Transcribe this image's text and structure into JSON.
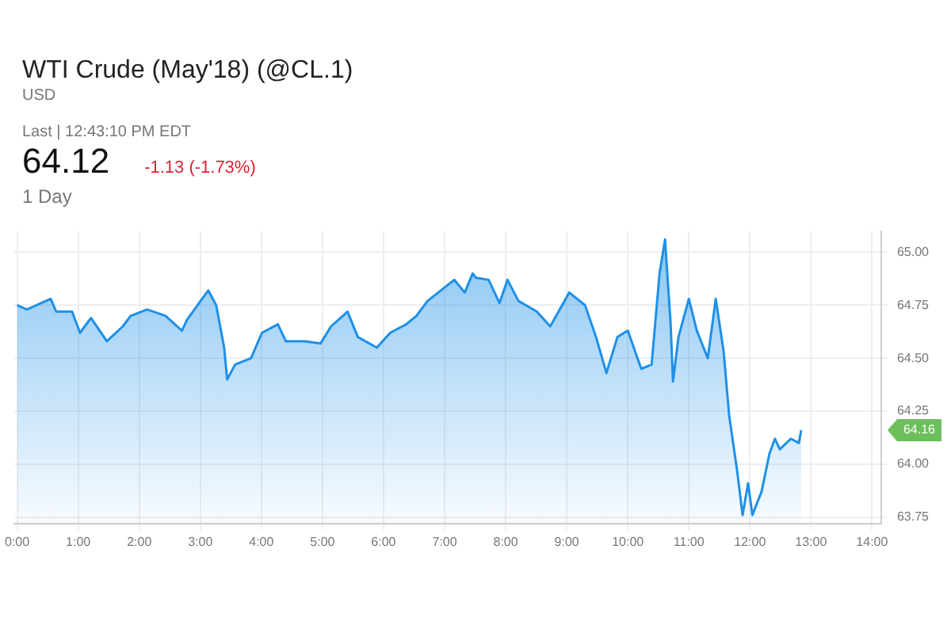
{
  "chart_data": {
    "type": "area",
    "title": "WTI Crude (May'18) (@CL.1)",
    "subtitle": "USD",
    "annotations": [
      "Last | 12:43:10 PM EDT",
      "64.12",
      "-1.13 (-1.73%)",
      "1 Day",
      "64.16"
    ],
    "x": [
      0.0,
      0.16,
      0.55,
      0.64,
      0.9,
      1.03,
      1.21,
      1.47,
      1.73,
      1.86,
      2.13,
      2.43,
      2.7,
      2.78,
      3.13,
      3.26,
      3.39,
      3.44,
      3.57,
      3.83,
      4.01,
      4.27,
      4.4,
      4.71,
      4.97,
      5.14,
      5.41,
      5.58,
      5.89,
      6.11,
      6.37,
      6.54,
      6.72,
      7.16,
      7.33,
      7.46,
      7.51,
      7.72,
      7.9,
      8.03,
      8.21,
      8.51,
      8.73,
      9.04,
      9.3,
      9.48,
      9.65,
      9.83,
      10.0,
      10.22,
      10.39,
      10.52,
      10.61,
      10.7,
      10.74,
      10.83,
      11.0,
      11.13,
      11.31,
      11.44,
      11.57,
      11.66,
      11.79,
      11.88,
      11.97,
      12.04,
      12.19,
      12.32,
      12.41,
      12.49,
      12.67,
      12.8,
      12.84
    ],
    "series": [
      {
        "color": "#1e90e8",
        "values": [
          64.75,
          64.73,
          64.78,
          64.72,
          64.72,
          64.62,
          64.69,
          64.58,
          64.65,
          64.7,
          64.73,
          64.7,
          64.63,
          64.68,
          64.82,
          64.75,
          64.55,
          64.4,
          64.47,
          64.5,
          64.62,
          64.66,
          64.58,
          64.58,
          64.57,
          64.65,
          64.72,
          64.6,
          64.55,
          64.62,
          64.66,
          64.7,
          64.77,
          64.87,
          64.81,
          64.9,
          64.88,
          64.87,
          64.76,
          64.87,
          64.77,
          64.72,
          64.65,
          64.81,
          64.75,
          64.6,
          64.43,
          64.6,
          64.63,
          64.45,
          64.47,
          64.9,
          65.06,
          64.67,
          64.39,
          64.6,
          64.78,
          64.63,
          64.5,
          64.78,
          64.53,
          64.23,
          63.97,
          63.76,
          63.91,
          63.76,
          63.87,
          64.05,
          64.12,
          64.07,
          64.12,
          64.1,
          64.16
        ]
      }
    ],
    "xlim": [
      -0.05,
      14.15
    ],
    "xticks": [
      {
        "value": 0,
        "label": "0:00"
      },
      {
        "value": 1,
        "label": "1:00"
      },
      {
        "value": 2,
        "label": "2:00"
      },
      {
        "value": 3,
        "label": "3:00"
      },
      {
        "value": 4,
        "label": "4:00"
      },
      {
        "value": 5,
        "label": "5:00"
      },
      {
        "value": 6,
        "label": "6:00"
      },
      {
        "value": 7,
        "label": "7:00"
      },
      {
        "value": 8,
        "label": "8:00"
      },
      {
        "value": 9,
        "label": "9:00"
      },
      {
        "value": 10,
        "label": "10:00"
      },
      {
        "value": 11,
        "label": "11:00"
      },
      {
        "value": 12,
        "label": "12:00"
      },
      {
        "value": 13,
        "label": "13:00"
      },
      {
        "value": 14,
        "label": "14:00"
      }
    ],
    "ylim": [
      63.72,
      65.1
    ],
    "yticks": [
      {
        "value": 63.75,
        "label": "63.75"
      },
      {
        "value": 64,
        "label": "64.00"
      },
      {
        "value": 64.25,
        "label": "64.25"
      },
      {
        "value": 64.5,
        "label": "64.50"
      },
      {
        "value": 64.75,
        "label": "64.75"
      },
      {
        "value": 65,
        "label": "65.00"
      }
    ],
    "grid": true
  }
}
